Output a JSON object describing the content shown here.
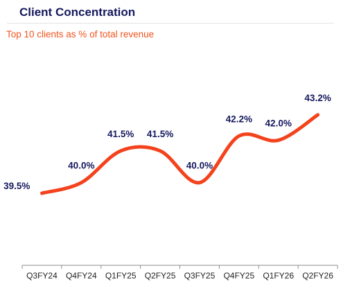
{
  "header": {
    "title": "Client Concentration",
    "subtitle": "Top 10 clients as % of total revenue"
  },
  "colors": {
    "title": "#14185c",
    "accent": "#f0531e",
    "line": "#f4421c",
    "labels": "#14185c",
    "axis": "#8c8c8c"
  },
  "chart_data": {
    "type": "line",
    "categories": [
      "Q3FY24",
      "Q4FY24",
      "Q1FY25",
      "Q2FY25",
      "Q3FY25",
      "Q4FY25",
      "Q1FY26",
      "Q2FY26"
    ],
    "values": [
      39.5,
      40.0,
      41.5,
      41.5,
      40.0,
      42.2,
      42.0,
      43.2
    ],
    "data_labels": [
      "39.5%",
      "40.0%",
      "41.5%",
      "41.5%",
      "40.0%",
      "42.2%",
      "42.0%",
      "43.2%"
    ],
    "title": "Client Concentration",
    "subtitle": "Top 10 clients as % of total revenue",
    "xlabel": "",
    "ylabel": "",
    "ylim": [
      36,
      44.5
    ],
    "grid": false,
    "smooth": true,
    "legend": "none"
  }
}
